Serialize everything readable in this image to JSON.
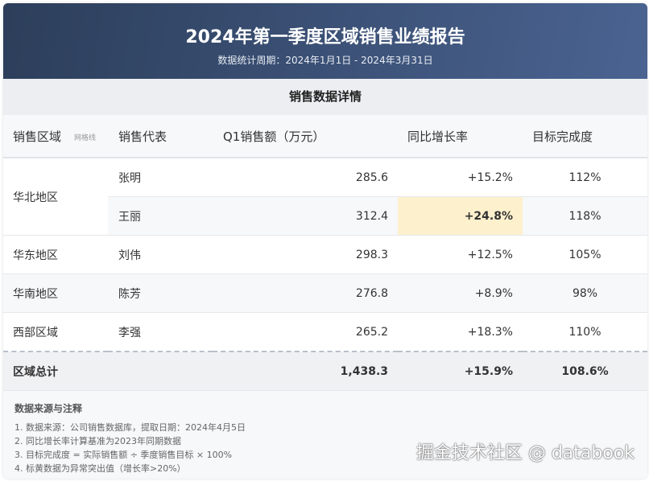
{
  "header": {
    "title": "2024年第一季度区域销售业绩报告",
    "subtitle": "数据统计周期：2024年1月1日 - 2024年3月31日"
  },
  "section_title": "销售数据详情",
  "columns": [
    "销售区域",
    "销售代表",
    "Q1销售额（万元）",
    "同比增长率",
    "目标完成度"
  ],
  "grid_label": "网格线",
  "rows": [
    {
      "region": "华北地区",
      "rep": "张明",
      "sales": "285.6",
      "growth": "+15.2%",
      "completion": "112%"
    },
    {
      "region": "",
      "rep": "王丽",
      "sales": "312.4",
      "growth": "+24.8%",
      "completion": "118%",
      "highlight": true
    },
    {
      "region": "华东地区",
      "rep": "刘伟",
      "sales": "298.3",
      "growth": "+12.5%",
      "completion": "105%"
    },
    {
      "region": "华南地区",
      "rep": "陈芳",
      "sales": "276.8",
      "growth": "+8.9%",
      "completion": "98%"
    },
    {
      "region": "西部区域",
      "rep": "李强",
      "sales": "265.2",
      "growth": "+18.3%",
      "completion": "110%"
    }
  ],
  "total": {
    "label": "区域总计",
    "sales": "1,438.3",
    "growth": "+15.9%",
    "completion": "108.6%"
  },
  "notes": {
    "title": "数据来源与注释",
    "items": [
      "1. 数据来源：公司销售数据库，提取日期：2024年4月5日",
      "2. 同比增长率计算基准为2023年同期数据",
      "3. 目标完成度 = 实际销售额 ÷ 季度销售目标 × 100%",
      "4. 标黄数据为异常突出值（增长率>20%）"
    ]
  },
  "watermark": "掘金技术社区 @ databook",
  "colors": {
    "header_start": "#2c3e5a",
    "header_end": "#4a6391",
    "highlight": "#fdf0cc"
  }
}
